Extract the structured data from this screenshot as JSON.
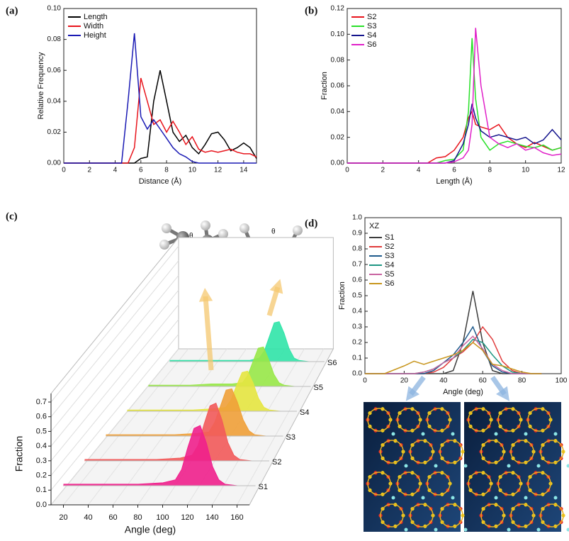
{
  "chart_data": [
    {
      "type": "line",
      "panel": "(a)",
      "xlabel": "Distance (Å)",
      "ylabel": "Relative Frequency",
      "legend": "upper left",
      "xlim": [
        0,
        15
      ],
      "xticks": [
        0,
        2,
        4,
        6,
        8,
        10,
        12,
        14
      ],
      "ylim": [
        0,
        0.1
      ],
      "yticks": [
        {
          "value": 0,
          "label": "0.00"
        },
        0.02,
        0.04,
        0.06,
        0.08,
        {
          "value": 0.1,
          "label": "0.10"
        }
      ],
      "x": [
        0,
        4,
        4.5,
        5,
        5.5,
        6,
        6.5,
        7,
        7.5,
        8,
        8.5,
        9,
        9.5,
        10,
        10.5,
        11,
        11.5,
        12,
        12.5,
        13,
        13.5,
        14,
        14.5,
        15
      ],
      "series": [
        {
          "name": "Length",
          "color": "#000000",
          "values": [
            0,
            0,
            0,
            0,
            0,
            0.003,
            0.004,
            0.04,
            0.06,
            0.04,
            0.02,
            0.014,
            0.018,
            0.01,
            0.006,
            0.012,
            0.019,
            0.02,
            0.015,
            0.008,
            0.01,
            0.013,
            0.01,
            0.003
          ]
        },
        {
          "name": "Width",
          "color": "#e8141c",
          "values": [
            0,
            0,
            0,
            0,
            0.01,
            0.055,
            0.04,
            0.025,
            0.028,
            0.02,
            0.027,
            0.02,
            0.012,
            0.017,
            0.009,
            0.007,
            0.008,
            0.007,
            0.008,
            0.009,
            0.007,
            0.006,
            0.006,
            0.004
          ]
        },
        {
          "name": "Height",
          "color": "#1a1ab4",
          "values": [
            0,
            0,
            0,
            0.04,
            0.084,
            0.03,
            0.022,
            0.028,
            0.022,
            0.016,
            0.01,
            0.006,
            0.004,
            0.001,
            0,
            0,
            0,
            0,
            0,
            0,
            0,
            0,
            0,
            0
          ]
        }
      ]
    },
    {
      "type": "line",
      "panel": "(b)",
      "xlabel": "Length (Å)",
      "ylabel": "Fraction",
      "legend": "upper left",
      "xlim": [
        0,
        12
      ],
      "xticks": [
        0,
        2,
        4,
        6,
        8,
        10,
        12
      ],
      "ylim": [
        0,
        0.12
      ],
      "yticks": [
        {
          "value": 0,
          "label": "0.00"
        },
        0.02,
        0.04,
        0.06,
        0.08,
        {
          "value": 0.1,
          "label": "0.10"
        },
        0.12
      ],
      "x": [
        0,
        4.5,
        5,
        5.5,
        6,
        6.5,
        6.8,
        7,
        7.2,
        7.5,
        8,
        8.5,
        9,
        9.5,
        10,
        10.5,
        11,
        11.5,
        12
      ],
      "series": [
        {
          "name": "S2",
          "color": "#e8141c",
          "values": [
            0,
            0,
            0.004,
            0.005,
            0.01,
            0.02,
            0.035,
            0.04,
            0.03,
            0.028,
            0.026,
            0.03,
            0.02,
            0.015,
            0.012,
            0.016,
            0.013,
            0.01,
            0.012
          ]
        },
        {
          "name": "S3",
          "color": "#28e028",
          "values": [
            0,
            0,
            0,
            0.002,
            0.003,
            0.01,
            0.04,
            0.097,
            0.05,
            0.02,
            0.01,
            0.015,
            0.017,
            0.015,
            0.013,
            0.012,
            0.014,
            0.01,
            0.012
          ]
        },
        {
          "name": "S4",
          "color": "#14148c",
          "values": [
            0,
            0,
            0,
            0,
            0.002,
            0.015,
            0.03,
            0.046,
            0.035,
            0.025,
            0.02,
            0.022,
            0.02,
            0.018,
            0.02,
            0.015,
            0.018,
            0.026,
            0.018
          ]
        },
        {
          "name": "S6",
          "color": "#e020c8",
          "values": [
            0,
            0,
            0,
            0,
            0.001,
            0.004,
            0.01,
            0.03,
            0.105,
            0.06,
            0.02,
            0.015,
            0.012,
            0.015,
            0.01,
            0.012,
            0.008,
            0.006,
            0.007
          ]
        }
      ]
    },
    {
      "type": "ridge3d",
      "panel": "(c)",
      "xlabel": "Angle (deg)",
      "ylabel": "Fraction",
      "annotations": [
        "θ",
        "θ"
      ],
      "xlim": [
        10,
        170
      ],
      "xticks": [
        20,
        40,
        60,
        80,
        100,
        120,
        140,
        160
      ],
      "ylim": [
        0,
        0.7
      ],
      "yticks": [
        {
          "value": 0,
          "label": "0.0"
        },
        0.1,
        0.2,
        0.3,
        0.4,
        0.5,
        0.6,
        0.7
      ],
      "x": [
        20,
        40,
        60,
        80,
        100,
        110,
        115,
        120,
        125,
        130,
        135,
        140,
        145,
        150,
        160,
        170
      ],
      "series": [
        {
          "name": "S1",
          "color": "#f0208c",
          "values": [
            0.01,
            0.01,
            0.01,
            0.01,
            0.02,
            0.04,
            0.11,
            0.26,
            0.39,
            0.41,
            0.29,
            0.13,
            0.04,
            0.01,
            0,
            0
          ]
        },
        {
          "name": "S2",
          "color": "#f25a5a",
          "values": [
            0.01,
            0.01,
            0.01,
            0.01,
            0.02,
            0.04,
            0.11,
            0.26,
            0.39,
            0.41,
            0.29,
            0.13,
            0.04,
            0.01,
            0,
            0
          ]
        },
        {
          "name": "S3",
          "color": "#f0a038",
          "values": [
            0.01,
            0.01,
            0.01,
            0.01,
            0.02,
            0.03,
            0.1,
            0.22,
            0.34,
            0.35,
            0.25,
            0.12,
            0.04,
            0.01,
            0,
            0
          ]
        },
        {
          "name": "S4",
          "color": "#e6e640",
          "values": [
            0.01,
            0.01,
            0.01,
            0.01,
            0.02,
            0.03,
            0.09,
            0.2,
            0.3,
            0.31,
            0.22,
            0.1,
            0.03,
            0.01,
            0,
            0
          ]
        },
        {
          "name": "S5",
          "color": "#98e848",
          "values": [
            0.01,
            0.01,
            0.01,
            0.02,
            0.02,
            0.03,
            0.09,
            0.2,
            0.31,
            0.32,
            0.22,
            0.1,
            0.03,
            0.01,
            0,
            0
          ]
        },
        {
          "name": "S6",
          "color": "#30e4a8",
          "values": [
            0.01,
            0.01,
            0.01,
            0.01,
            0.01,
            0.03,
            0.09,
            0.21,
            0.33,
            0.34,
            0.24,
            0.11,
            0.03,
            0.01,
            0,
            0
          ]
        }
      ]
    },
    {
      "type": "line",
      "panel": "(d)",
      "xlabel": "Angle (deg)",
      "ylabel": "Fraction",
      "annotation": "XZ",
      "legend": "upper left",
      "xlim": [
        0,
        100
      ],
      "xticks": [
        0,
        20,
        40,
        60,
        80,
        100
      ],
      "ylim": [
        0,
        1
      ],
      "yticks": [
        {
          "value": 0,
          "label": "0.0"
        },
        0.1,
        0.2,
        0.3,
        0.4,
        0.5,
        0.6,
        0.7,
        0.8,
        0.9,
        {
          "value": 1,
          "label": "1.0"
        }
      ],
      "x": [
        0,
        10,
        20,
        25,
        30,
        35,
        40,
        45,
        50,
        55,
        60,
        65,
        70,
        75,
        80,
        85,
        90
      ],
      "series": [
        {
          "name": "S1",
          "color": "#3c3c3c",
          "values": [
            0,
            0,
            0,
            0,
            0,
            0,
            0,
            0.02,
            0.2,
            0.53,
            0.2,
            0.02,
            0,
            0,
            0,
            0,
            0
          ]
        },
        {
          "name": "S2",
          "color": "#e03c3c",
          "values": [
            0,
            0,
            0,
            0,
            0,
            0.01,
            0.04,
            0.1,
            0.14,
            0.2,
            0.3,
            0.22,
            0.08,
            0.02,
            0,
            0,
            0
          ]
        },
        {
          "name": "S3",
          "color": "#1e5a8c",
          "values": [
            0,
            0,
            0,
            0,
            0,
            0.02,
            0.07,
            0.12,
            0.2,
            0.3,
            0.15,
            0.05,
            0.01,
            0,
            0,
            0,
            0
          ]
        },
        {
          "name": "S4",
          "color": "#1e9682",
          "values": [
            0,
            0,
            0,
            0,
            0.01,
            0.03,
            0.07,
            0.1,
            0.15,
            0.22,
            0.2,
            0.12,
            0.05,
            0.01,
            0,
            0,
            0
          ]
        },
        {
          "name": "S5",
          "color": "#c864a0",
          "values": [
            0,
            0,
            0,
            0,
            0.01,
            0.03,
            0.07,
            0.1,
            0.18,
            0.24,
            0.16,
            0.06,
            0.02,
            0,
            0,
            0,
            0
          ]
        },
        {
          "name": "S6",
          "color": "#c8961e",
          "values": [
            0,
            0,
            0.05,
            0.08,
            0.06,
            0.08,
            0.1,
            0.12,
            0.15,
            0.2,
            0.15,
            0.06,
            0.05,
            0.03,
            0.01,
            0,
            0
          ]
        }
      ]
    }
  ]
}
